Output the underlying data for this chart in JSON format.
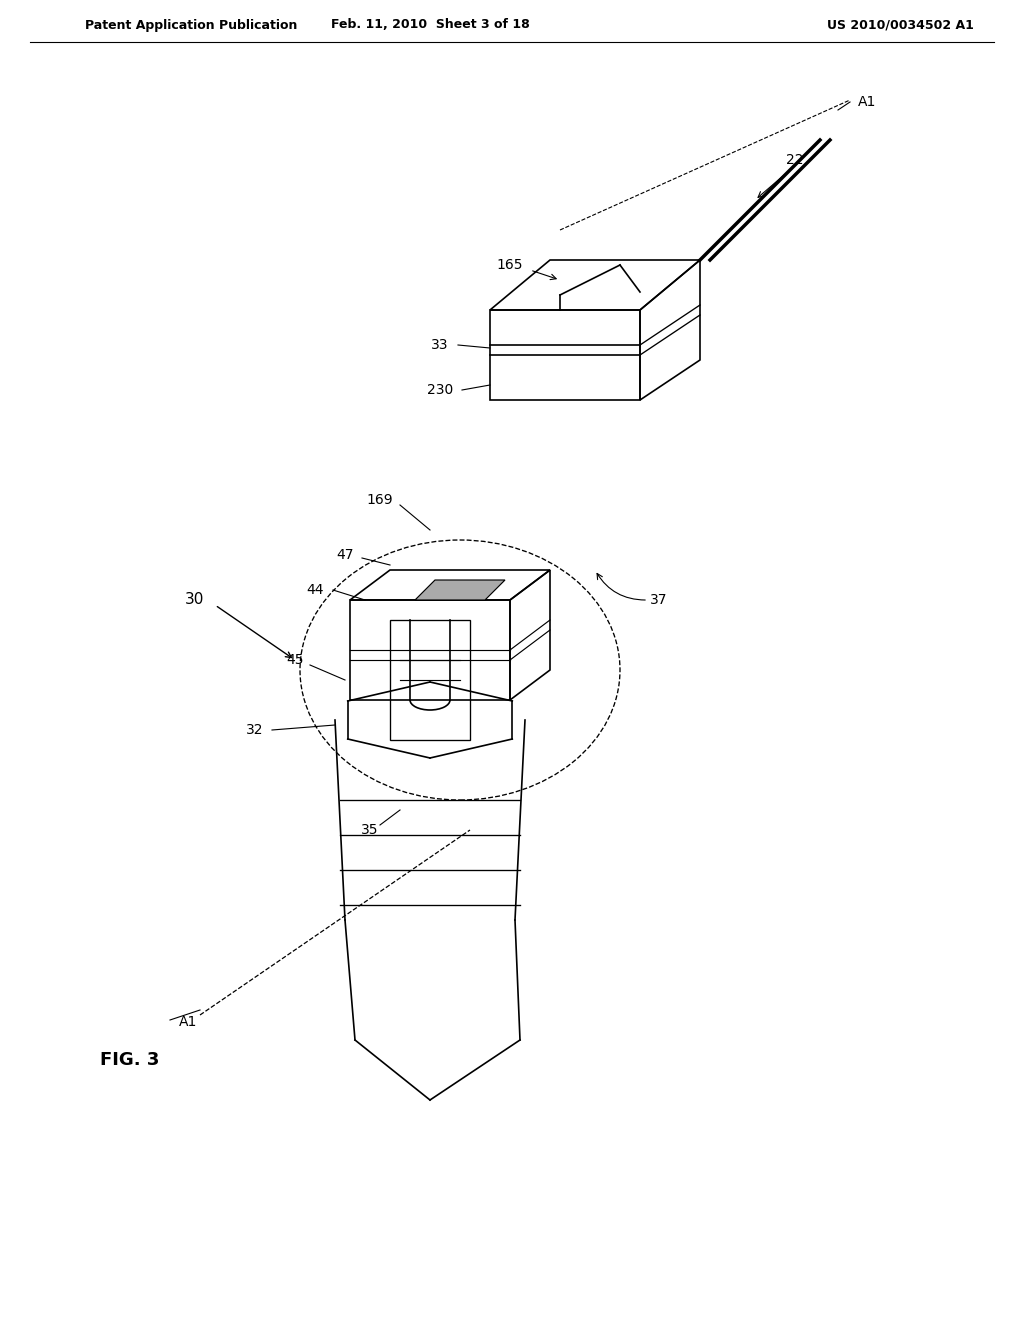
{
  "title_left": "Patent Application Publication",
  "title_mid": "Feb. 11, 2010  Sheet 3 of 18",
  "title_right": "US 2010/0034502 A1",
  "fig_label": "FIG. 3",
  "background_color": "#ffffff",
  "line_color": "#000000",
  "line_width": 1.2,
  "labels": {
    "A1_top": "A1",
    "22": "22",
    "165": "165",
    "33": "33",
    "230": "230",
    "30": "30",
    "169": "169",
    "47": "47",
    "44": "44",
    "45": "45",
    "37": "37",
    "32": "32",
    "35": "35",
    "A1_bot": "A1"
  }
}
